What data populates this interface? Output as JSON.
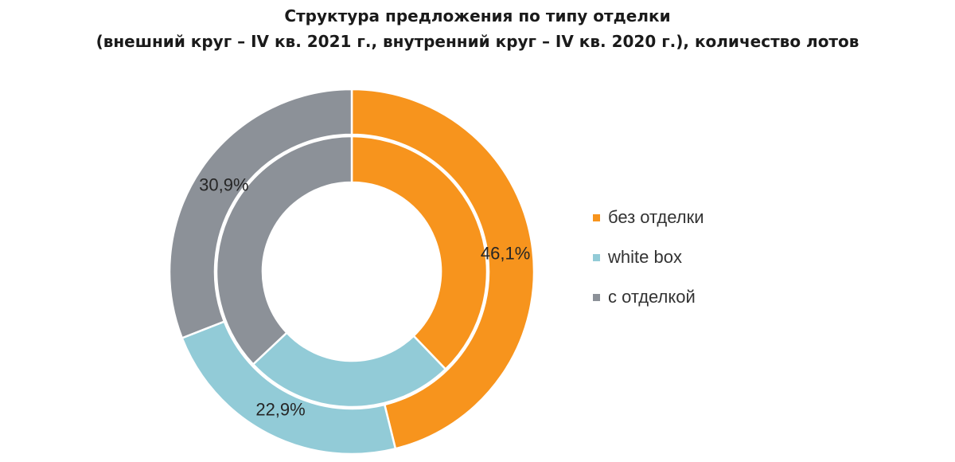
{
  "chart_data": {
    "type": "pie",
    "variant": "double-donut",
    "title": "Структура предложения по типу отделки",
    "subtitle": "(внешний круг – IV кв. 2021 г., внутренний круг – IV кв. 2020 г.), количество лотов",
    "categories": [
      "без отделки",
      "white box",
      "с отделкой"
    ],
    "colors": [
      "#f7941d",
      "#92cbd7",
      "#8c9198"
    ],
    "series": [
      {
        "name": "IV кв. 2021 г.",
        "ring": "outer",
        "values": [
          46.1,
          22.9,
          30.9
        ],
        "labels": [
          "46,1%",
          "22,9%",
          "30,9%"
        ]
      },
      {
        "name": "IV кв. 2020 г.",
        "ring": "inner",
        "values": [
          37.8,
          25.2,
          37.0
        ],
        "labels": [
          "",
          "",
          ""
        ]
      }
    ],
    "legend": {
      "position": "right",
      "entries": [
        "без отделки",
        "white box",
        "с отделкой"
      ]
    }
  }
}
